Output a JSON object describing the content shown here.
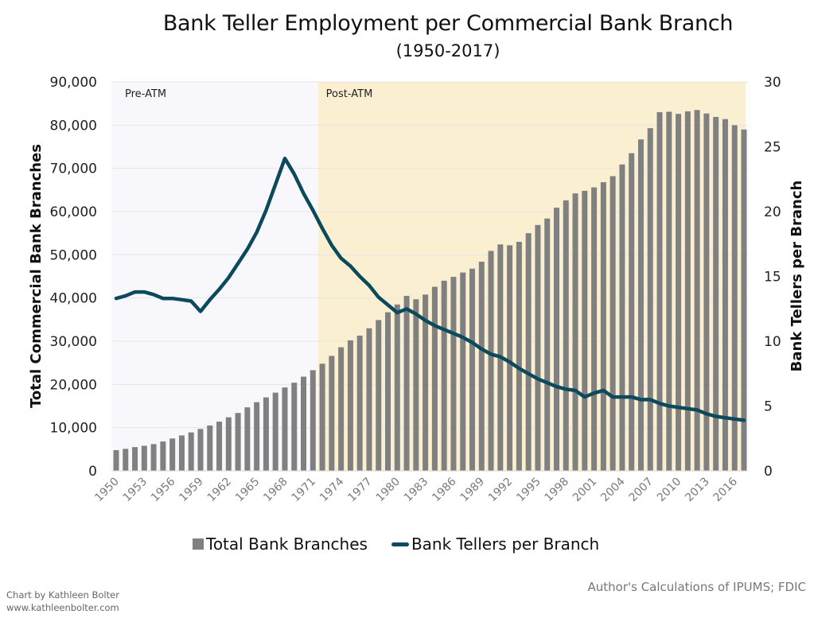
{
  "title": "Bank Teller Employment per Commercial Bank Branch",
  "subtitle": "(1950-2017)",
  "credit": {
    "line1": "Chart by Kathleen Bolter",
    "line2": "www.kathleenbolter.com"
  },
  "source": "Author's Calculations of IPUMS; FDIC",
  "colors": {
    "bars": "#808080",
    "line": "#0b4a5c",
    "pre_atm_bg": "#f8f8fc",
    "post_atm_bg": "#faefd1",
    "grid": "#e6e6e6"
  },
  "chart_data": {
    "type": "bar+line",
    "title": "Bank Teller Employment per Commercial Bank Branch",
    "subtitle": "(1950-2017)",
    "xlabel": "",
    "ylabel_left": "Total Commercial Bank Branches",
    "ylabel_right": "Bank Tellers per Branch",
    "ylim_left": [
      0,
      90000
    ],
    "ylim_right": [
      0,
      30
    ],
    "yticks_left": [
      "0",
      "10,000",
      "20,000",
      "30,000",
      "40,000",
      "50,000",
      "60,000",
      "70,000",
      "80,000",
      "90,000"
    ],
    "yticks_right": [
      "0",
      "5",
      "10",
      "15",
      "20",
      "25",
      "30"
    ],
    "grid": true,
    "legend_position": "bottom",
    "regions": [
      {
        "label": "Pre-ATM",
        "start": 1950,
        "end": 1971
      },
      {
        "label": "Post-ATM",
        "start": 1972,
        "end": 2017
      }
    ],
    "x": [
      1950,
      1951,
      1952,
      1953,
      1954,
      1955,
      1956,
      1957,
      1958,
      1959,
      1960,
      1961,
      1962,
      1963,
      1964,
      1965,
      1966,
      1967,
      1968,
      1969,
      1970,
      1971,
      1972,
      1973,
      1974,
      1975,
      1976,
      1977,
      1978,
      1979,
      1980,
      1981,
      1982,
      1983,
      1984,
      1985,
      1986,
      1987,
      1988,
      1989,
      1990,
      1991,
      1992,
      1993,
      1994,
      1995,
      1996,
      1997,
      1998,
      1999,
      2000,
      2001,
      2002,
      2003,
      2004,
      2005,
      2006,
      2007,
      2008,
      2009,
      2010,
      2011,
      2012,
      2013,
      2014,
      2015,
      2016,
      2017
    ],
    "xtick_labels": [
      "1950",
      "1953",
      "1956",
      "1959",
      "1962",
      "1965",
      "1968",
      "1971",
      "1974",
      "1977",
      "1980",
      "1983",
      "1986",
      "1989",
      "1992",
      "1995",
      "1998",
      "2001",
      "2004",
      "2007",
      "2010",
      "2013",
      "2016"
    ],
    "series": [
      {
        "name": "Total Bank Branches",
        "type": "bar",
        "axis": "left",
        "values": [
          4800,
          5100,
          5500,
          5800,
          6200,
          6800,
          7500,
          8200,
          8900,
          9700,
          10500,
          11400,
          12400,
          13400,
          14700,
          15900,
          17000,
          18100,
          19300,
          20400,
          21800,
          23300,
          24800,
          26600,
          28600,
          30200,
          31300,
          33000,
          34900,
          36700,
          38500,
          40500,
          39700,
          40800,
          42600,
          44000,
          44900,
          45900,
          46800,
          48400,
          50900,
          52400,
          52200,
          53000,
          55000,
          56900,
          58400,
          60900,
          62600,
          64200,
          64800,
          65600,
          66800,
          68200,
          70900,
          73500,
          76700,
          79300,
          83000,
          83100,
          82600,
          83200,
          83500,
          82700,
          81900,
          81400,
          80000,
          79000
        ]
      },
      {
        "name": "Bank Tellers per Branch",
        "type": "line",
        "axis": "right",
        "values": [
          13.3,
          13.5,
          13.8,
          13.8,
          13.6,
          13.3,
          13.3,
          13.2,
          13.1,
          12.3,
          13.2,
          14.0,
          14.9,
          16.0,
          17.1,
          18.4,
          20.1,
          22.1,
          24.1,
          22.9,
          21.4,
          20.1,
          18.7,
          17.4,
          16.4,
          15.8,
          15.0,
          14.3,
          13.4,
          12.8,
          12.2,
          12.5,
          12.1,
          11.6,
          11.2,
          10.9,
          10.6,
          10.3,
          9.9,
          9.4,
          9.0,
          8.8,
          8.4,
          7.9,
          7.5,
          7.1,
          6.8,
          6.5,
          6.3,
          6.2,
          5.7,
          6.0,
          6.2,
          5.7,
          5.7,
          5.7,
          5.5,
          5.5,
          5.2,
          5.0,
          4.9,
          4.8,
          4.7,
          4.4,
          4.2,
          4.1,
          4.0,
          3.9
        ]
      }
    ]
  },
  "legend": [
    {
      "label": "Total Bank Branches",
      "kind": "bar"
    },
    {
      "label": "Bank Tellers per Branch",
      "kind": "line"
    }
  ]
}
